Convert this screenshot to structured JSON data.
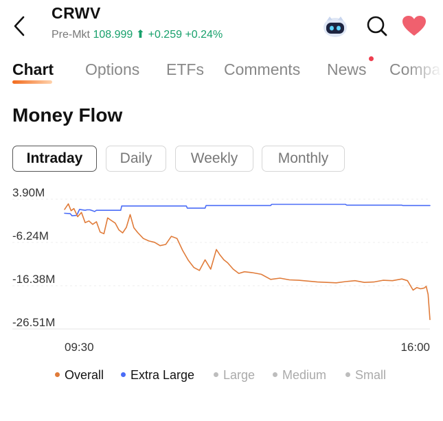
{
  "header": {
    "ticker": "CRWV",
    "quote_label": "Pre-Mkt",
    "price": "108.999",
    "change": "+0.259",
    "change_pct": "+0.24%",
    "up_color": "#17a06b",
    "icons": [
      "back-arrow-icon",
      "assistant-robot-icon",
      "search-icon",
      "heart-icon"
    ]
  },
  "tabs": [
    {
      "label": "Chart",
      "active": true
    },
    {
      "label": "Options",
      "active": false
    },
    {
      "label": "ETFs",
      "active": false
    },
    {
      "label": "Comments",
      "active": false
    },
    {
      "label": "News",
      "active": false,
      "badge": "red-dot"
    },
    {
      "label": "Compa",
      "active": false
    }
  ],
  "section_title": "Money Flow",
  "periods": [
    {
      "label": "Intraday",
      "active": true
    },
    {
      "label": "Daily",
      "active": false
    },
    {
      "label": "Weekly",
      "active": false
    },
    {
      "label": "Monthly",
      "active": false
    }
  ],
  "chart_data": {
    "type": "line",
    "title": "Money Flow",
    "y_tick_labels": [
      "3.90M",
      "-6.24M",
      "-16.38M",
      "-26.51M"
    ],
    "y_ticks": [
      3.9,
      -6.24,
      -16.38,
      -26.51
    ],
    "ylim": [
      -26.51,
      3.9
    ],
    "x_tick_labels": [
      "09:30",
      "16:00"
    ],
    "x_range_minutes": [
      0,
      390
    ],
    "grid": true,
    "series": [
      {
        "name": "Overall",
        "color": "#e07b39",
        "x": [
          0,
          4,
          7,
          10,
          14,
          18,
          22,
          26,
          30,
          34,
          38,
          42,
          46,
          50,
          54,
          58,
          62,
          66,
          70,
          74,
          78,
          84,
          90,
          96,
          102,
          108,
          114,
          120,
          126,
          132,
          138,
          144,
          150,
          156,
          162,
          166,
          170,
          174,
          180,
          186,
          192,
          200,
          210,
          220,
          230,
          240,
          250,
          260,
          270,
          280,
          290,
          300,
          310,
          320,
          330,
          340,
          350,
          360,
          366,
          372,
          376,
          380,
          384,
          386,
          388,
          390
        ],
        "y": [
          1.5,
          2.8,
          1.2,
          1.7,
          -0.2,
          0.8,
          -1.6,
          -1.2,
          -2.0,
          -1.4,
          -3.8,
          -4.2,
          -0.5,
          -1.1,
          -1.7,
          -3.3,
          -4.0,
          -2.7,
          0.3,
          -2.8,
          -3.9,
          -5.3,
          -5.9,
          -6.2,
          -7.0,
          -6.7,
          -4.8,
          -5.3,
          -8.1,
          -10.4,
          -12.1,
          -12.8,
          -10.3,
          -12.5,
          -7.9,
          -9.2,
          -10.3,
          -11.0,
          -12.5,
          -13.5,
          -13.1,
          -13.3,
          -13.7,
          -14.9,
          -14.6,
          -15.0,
          -15.1,
          -15.3,
          -15.5,
          -15.6,
          -15.7,
          -15.4,
          -15.2,
          -15.6,
          -15.5,
          -15.1,
          -15.2,
          -14.8,
          -15.2,
          -17.4,
          -16.8,
          -17.1,
          -16.9,
          -16.5,
          -18.4,
          -24.3
        ]
      },
      {
        "name": "Extra Large",
        "color": "#4a6cf7",
        "x": [
          0,
          6,
          8,
          13,
          16,
          22,
          24,
          27,
          30,
          32,
          34,
          40,
          60,
          61,
          130,
          131,
          150,
          151,
          220,
          221,
          300,
          301,
          360,
          361,
          390
        ],
        "y": [
          0.6,
          0.5,
          0.0,
          0.1,
          1.5,
          1.3,
          1.4,
          1.4,
          1.2,
          1.0,
          1.3,
          1.3,
          1.3,
          2.3,
          2.3,
          1.8,
          1.8,
          2.4,
          2.4,
          2.7,
          2.7,
          2.5,
          2.5,
          2.4,
          2.4
        ]
      }
    ]
  },
  "legend": [
    {
      "label": "Overall",
      "color": "#e07b39",
      "on": true
    },
    {
      "label": "Extra Large",
      "color": "#4a6cf7",
      "on": true
    },
    {
      "label": "Large",
      "color": "#bdbdbd",
      "on": false
    },
    {
      "label": "Medium",
      "color": "#bdbdbd",
      "on": false
    },
    {
      "label": "Small",
      "color": "#bdbdbd",
      "on": false
    }
  ]
}
